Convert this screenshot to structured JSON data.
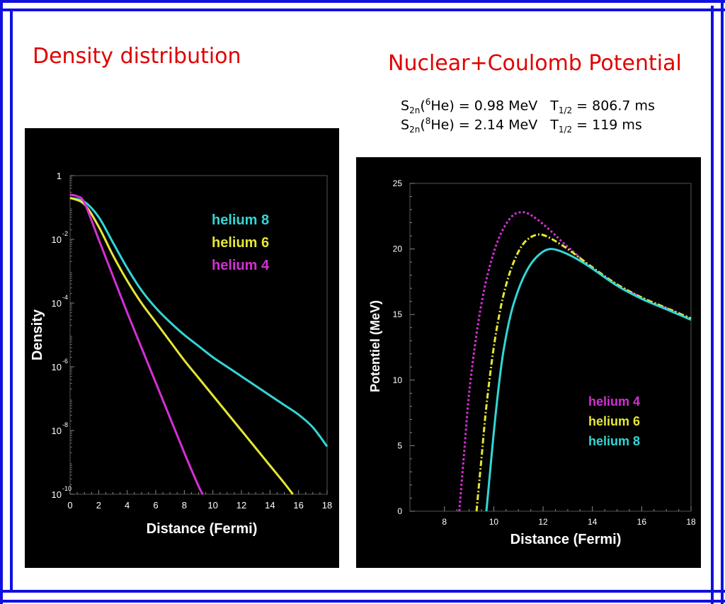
{
  "slide": {
    "left_title": "Density distribution",
    "right_title": "Nuclear+Coulomb Potential",
    "formula1": {
      "s": "S",
      "s_sub": "2n",
      "lpar": "(",
      "iso_sup": "6",
      "iso_el": "He",
      "eq": ") = 0.98 MeV",
      "t": "T",
      "t_sub": "1/2",
      "t_val": " = 806.7 ms"
    },
    "formula2": {
      "s": "S",
      "s_sub": "2n",
      "lpar": "(",
      "iso_sup": "8",
      "iso_el": "He",
      "eq": ") = 2.14 MeV",
      "t": "T",
      "t_sub": "1/2",
      "t_val": " = 119  ms"
    },
    "colors": {
      "frame": "#1010e0",
      "title": "#e00000",
      "helium8": "#33d6d6",
      "helium6": "#e6e635",
      "helium4": "#d42fd4"
    }
  },
  "chart_data": [
    {
      "type": "line",
      "xlabel": "Distance (Fermi)",
      "ylabel": "Density",
      "xlim": [
        0,
        18
      ],
      "ylim_log10": [
        -10,
        0
      ],
      "yscale": "log",
      "xticks": [
        "0",
        "2",
        "4",
        "6",
        "8",
        "10",
        "12",
        "14",
        "16",
        "18"
      ],
      "yticks": [
        {
          "log": 0,
          "base": "1",
          "exp": ""
        },
        {
          "log": -2,
          "base": "10",
          "exp": "-2"
        },
        {
          "log": -4,
          "base": "10",
          "exp": "-4"
        },
        {
          "log": -6,
          "base": "10",
          "exp": "-6"
        },
        {
          "log": -8,
          "base": "10",
          "exp": "-8"
        },
        {
          "log": -10,
          "base": "10",
          "exp": "-10"
        }
      ],
      "legend": [
        "helium 8",
        "helium 6",
        "helium 4"
      ],
      "legend_position": "top-right",
      "series": [
        {
          "name": "helium 8",
          "color": "#33d6d6",
          "x": [
            0,
            1,
            2,
            3,
            4,
            5,
            6,
            7,
            8,
            9,
            10,
            11,
            12,
            13,
            14,
            15,
            16,
            17,
            18
          ],
          "y": [
            "1e-0.7",
            "1e-0.82",
            "1e-1.3",
            "1e-2.1",
            "1e-2.9",
            "1e-3.6",
            "1e-4.15",
            "1e-4.6",
            "1e-5.0",
            "1e-5.35",
            "1e-5.7",
            "1e-6.0",
            "1e-6.3",
            "1e-6.6",
            "1e-6.9",
            "1e-7.2",
            "1e-7.5",
            "1e-7.9",
            "1e-8.5"
          ]
        },
        {
          "name": "helium 6",
          "color": "#e6e635",
          "x": [
            0,
            1,
            2,
            3,
            4,
            5,
            6,
            7,
            8,
            9,
            10,
            11,
            12,
            13,
            14,
            15,
            15.6
          ],
          "y": [
            "1e-0.7",
            "1e-0.9",
            "1e-1.6",
            "1e-2.5",
            "1e-3.3",
            "1e-4.0",
            "1e-4.6",
            "1e-5.2",
            "1e-5.8",
            "1e-6.35",
            "1e-6.9",
            "1e-7.45",
            "1e-8.0",
            "1e-8.55",
            "1e-9.1",
            "1e-9.65",
            "1e-10"
          ]
        },
        {
          "name": "helium 4",
          "color": "#d42fd4",
          "x": [
            0,
            0.5,
            1,
            2,
            3,
            4,
            5,
            6,
            7,
            8,
            9,
            9.3
          ],
          "y": [
            "1e-0.6",
            "1e-0.65",
            "1e-0.85",
            "1e-2.0",
            "1e-3.15",
            "1e-4.3",
            "1e-5.4",
            "1e-6.5",
            "1e-7.6",
            "1e-8.7",
            "1e-9.75",
            "1e-10"
          ]
        }
      ]
    },
    {
      "type": "line",
      "xlabel": "Distance (Fermi)",
      "ylabel": "Potentiel (MeV)",
      "xlim": [
        6.6,
        18
      ],
      "ylim": [
        0,
        25
      ],
      "xticks": [
        "8",
        "10",
        "12",
        "14",
        "16",
        "18"
      ],
      "yticks": [
        "0",
        "5",
        "10",
        "15",
        "20",
        "25"
      ],
      "legend": [
        "helium 4",
        "helium 6",
        "helium 8"
      ],
      "legend_position": "bottom-right",
      "series": [
        {
          "name": "helium 4",
          "color": "#d42fd4",
          "style": "dotted",
          "x": [
            8.6,
            8.8,
            9.0,
            9.3,
            9.6,
            9.9,
            10.2,
            10.5,
            10.8,
            11.1,
            11.4,
            11.8,
            12.3,
            12.8,
            13.4,
            14,
            15,
            16,
            17,
            18
          ],
          "y": [
            0,
            4.5,
            9,
            13.5,
            16.8,
            19.1,
            20.8,
            21.9,
            22.6,
            22.8,
            22.7,
            22.2,
            21.4,
            20.5,
            19.5,
            18.5,
            17.3,
            16.3,
            15.5,
            14.7
          ]
        },
        {
          "name": "helium 6",
          "color": "#e6e635",
          "style": "dashdot",
          "x": [
            9.3,
            9.5,
            9.7,
            10,
            10.3,
            10.6,
            10.9,
            11.2,
            11.5,
            11.8,
            12.1,
            12.5,
            13,
            13.5,
            14,
            15,
            16,
            17,
            18
          ],
          "y": [
            0,
            4,
            8,
            12.5,
            15.7,
            17.9,
            19.4,
            20.4,
            20.9,
            21.1,
            21.0,
            20.6,
            20.0,
            19.3,
            18.6,
            17.3,
            16.3,
            15.5,
            14.7
          ]
        },
        {
          "name": "helium 8",
          "color": "#33d6d6",
          "style": "solid",
          "x": [
            9.7,
            9.85,
            10,
            10.2,
            10.4,
            10.7,
            11,
            11.3,
            11.6,
            12,
            12.3,
            12.6,
            13,
            13.5,
            14,
            15,
            16,
            17,
            18
          ],
          "y": [
            0,
            3,
            6,
            9.5,
            12.3,
            15.1,
            16.9,
            18.2,
            19.1,
            19.8,
            20.0,
            19.9,
            19.6,
            19.1,
            18.5,
            17.2,
            16.2,
            15.4,
            14.6
          ]
        }
      ]
    }
  ]
}
